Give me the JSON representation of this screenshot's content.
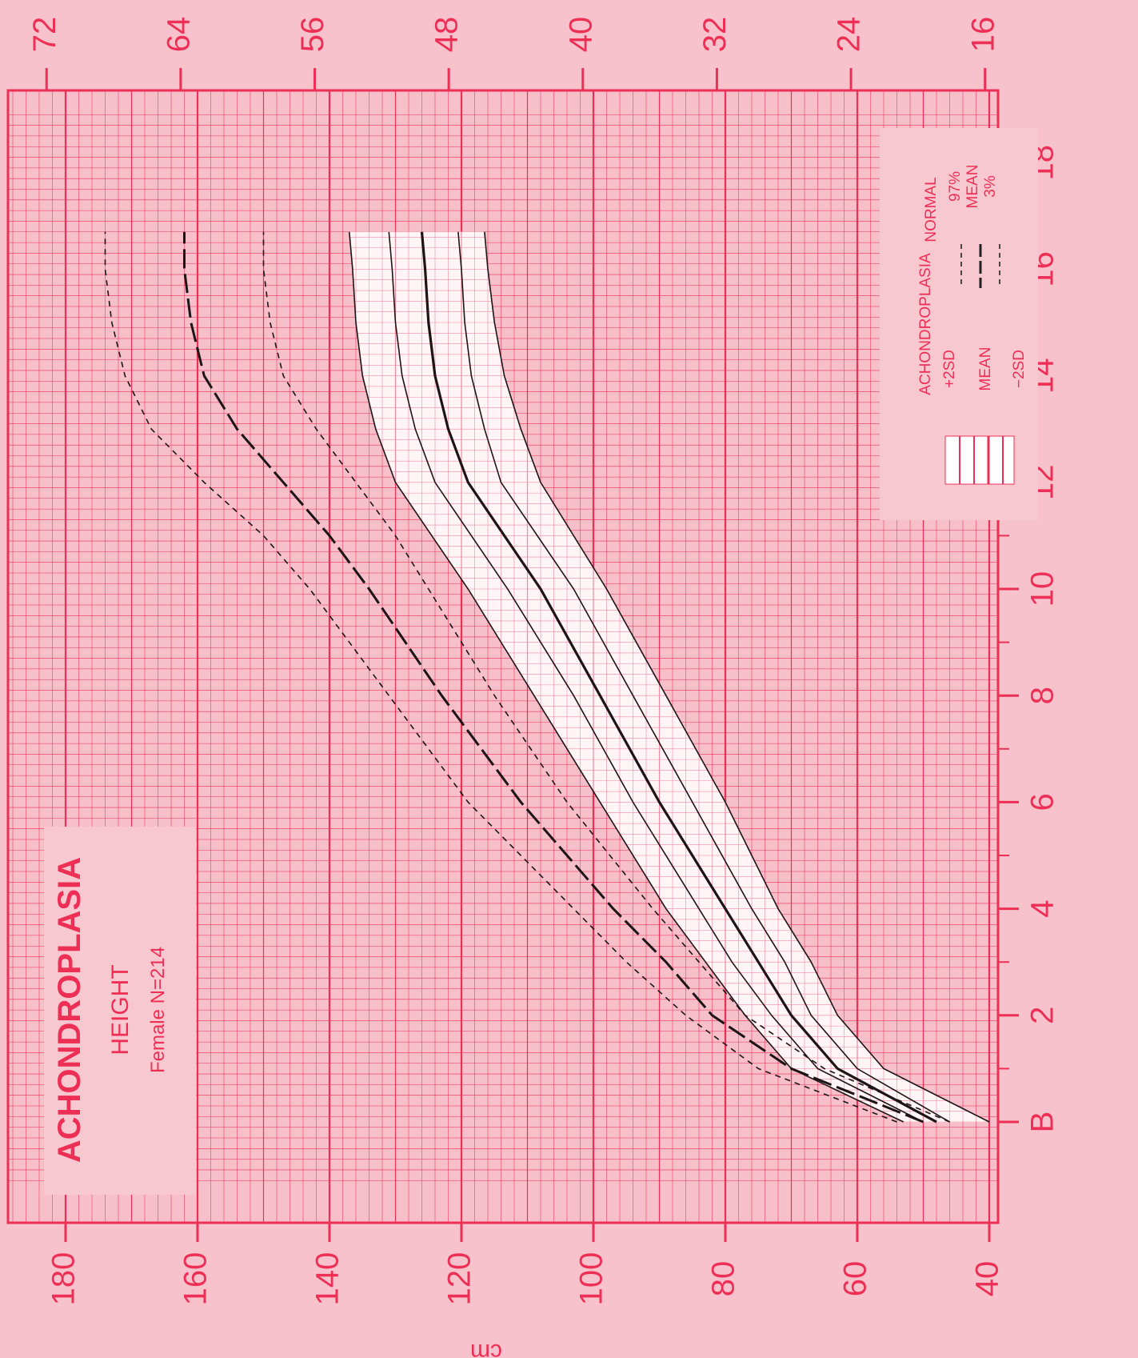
{
  "chart_data": {
    "type": "line",
    "rotated": "chart printed sideways; age axis runs top-to-bottom at right, height axis along bottom",
    "title": "ACHONDROPLASIA",
    "subtitle": "HEIGHT",
    "subtitle2": "Female N=214",
    "xlabel": "",
    "ylabel": "cm",
    "x_ticks": [
      "B",
      "2",
      "4",
      "6",
      "8",
      "10",
      "12",
      "14",
      "16",
      "18"
    ],
    "x_tick_values": [
      0,
      2,
      4,
      6,
      8,
      10,
      12,
      14,
      16,
      18
    ],
    "y_ticks": [
      "40",
      "60",
      "80",
      "100",
      "120",
      "140",
      "160",
      "180"
    ],
    "y_tick_values": [
      40,
      60,
      80,
      100,
      120,
      140,
      160,
      180
    ],
    "inch_ticks": [
      "16",
      "24",
      "32",
      "40",
      "48",
      "56",
      "64",
      "72"
    ],
    "inch_tick_values": [
      16,
      24,
      32,
      40,
      48,
      56,
      64,
      72
    ],
    "xlim": [
      -1.1,
      19
    ],
    "ylim": [
      40,
      190
    ],
    "grid": true,
    "legend_position": "top-right (rotated)",
    "legend": {
      "achondroplasia_header": "ACHONDROPLASIA",
      "normal_header": "NORMAL",
      "achon_items": [
        "+2SD",
        "MEAN",
        "−2SD"
      ],
      "normal_items": [
        "97%",
        "MEAN",
        "3%"
      ]
    },
    "band": {
      "x": [
        0,
        1,
        2,
        3,
        4,
        6,
        8,
        10,
        12,
        13,
        14,
        15,
        16,
        16.7
      ],
      "upper": [
        53,
        70,
        77,
        83,
        89,
        99,
        109,
        119,
        130,
        133,
        135,
        136,
        136.5,
        137
      ],
      "lower": [
        40,
        56,
        63,
        67,
        72,
        80,
        89,
        98,
        108,
        111,
        113.5,
        115,
        116,
        116.5
      ]
    },
    "series": [
      {
        "name": "+2SD",
        "group": "achondroplasia",
        "style": "solid-thin",
        "x": [
          0,
          1,
          2,
          3,
          4,
          6,
          8,
          10,
          12,
          13,
          14,
          15,
          16,
          16.7
        ],
        "y": [
          53,
          70,
          77,
          83,
          89,
          99,
          109,
          119,
          130,
          133,
          135,
          136,
          136.5,
          137
        ]
      },
      {
        "name": "",
        "group": "achondroplasia",
        "style": "solid-thin",
        "x": [
          0,
          1,
          2,
          3,
          4,
          6,
          8,
          10,
          12,
          13,
          14,
          15,
          16,
          16.7
        ],
        "y": [
          50,
          66,
          73,
          79,
          84,
          94,
          103,
          113,
          124,
          127,
          129,
          130,
          130.5,
          131
        ]
      },
      {
        "name": "MEAN",
        "group": "achondroplasia",
        "style": "solid-thick",
        "x": [
          0,
          1,
          2,
          3,
          4,
          6,
          8,
          10,
          12,
          13,
          14,
          15,
          16,
          16.7
        ],
        "y": [
          48,
          63,
          70,
          75,
          80,
          90,
          99,
          108,
          119,
          122,
          124,
          125,
          125.5,
          126
        ]
      },
      {
        "name": "",
        "group": "achondroplasia",
        "style": "solid-thin",
        "x": [
          0,
          1,
          2,
          3,
          4,
          6,
          8,
          10,
          12,
          13,
          14,
          15,
          16,
          16.7
        ],
        "y": [
          46,
          60,
          67,
          71,
          76,
          85,
          94,
          103,
          114,
          116.5,
          118.5,
          119.5,
          120,
          120.5
        ]
      },
      {
        "name": "−2SD",
        "group": "achondroplasia",
        "style": "solid-thin",
        "x": [
          0,
          1,
          2,
          3,
          4,
          6,
          8,
          10,
          12,
          13,
          14,
          15,
          16,
          16.7
        ],
        "y": [
          40,
          56,
          63,
          67,
          72,
          80,
          89,
          98,
          108,
          111,
          113.5,
          115,
          116,
          116.5
        ]
      },
      {
        "name": "97%",
        "group": "normal",
        "style": "dash-short",
        "x": [
          0,
          1,
          2,
          3,
          4,
          6,
          8,
          10,
          11,
          12,
          13,
          14,
          15,
          16,
          16.7
        ],
        "y": [
          54,
          75,
          86,
          95,
          103,
          119,
          131,
          143,
          150,
          159,
          167,
          171,
          173,
          174,
          174
        ]
      },
      {
        "name": "MEAN",
        "group": "normal",
        "style": "dash-long",
        "x": [
          0,
          1,
          2,
          3,
          4,
          6,
          8,
          10,
          11,
          12,
          13,
          14,
          15,
          16,
          16.7
        ],
        "y": [
          50,
          70,
          82,
          89,
          97,
          111,
          123,
          134,
          140,
          147,
          154,
          159,
          161,
          162,
          162
        ]
      },
      {
        "name": "3%",
        "group": "normal",
        "style": "dash-short",
        "x": [
          0,
          1,
          2,
          3,
          4,
          6,
          8,
          10,
          11,
          12,
          13,
          14,
          15,
          16,
          16.7
        ],
        "y": [
          46,
          65,
          77,
          84,
          91,
          104,
          115,
          125,
          130,
          136,
          142,
          147,
          149,
          150,
          150
        ]
      }
    ]
  }
}
